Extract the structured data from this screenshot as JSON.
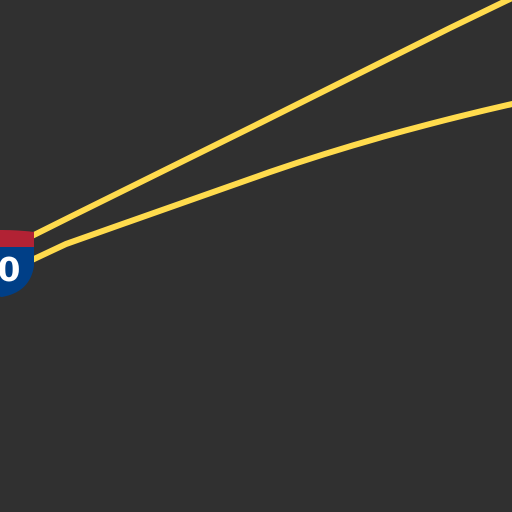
{
  "map": {
    "background_color": "#303030",
    "highway_color": "#ffdb4d",
    "roads": [
      {
        "name": "interstate-carriageway-north"
      },
      {
        "name": "interstate-carriageway-south"
      }
    ],
    "shield": {
      "type": "interstate",
      "route_number": "0",
      "top_color": "#b22234",
      "body_color": "#003f87",
      "text_color": "#ffffff"
    }
  }
}
